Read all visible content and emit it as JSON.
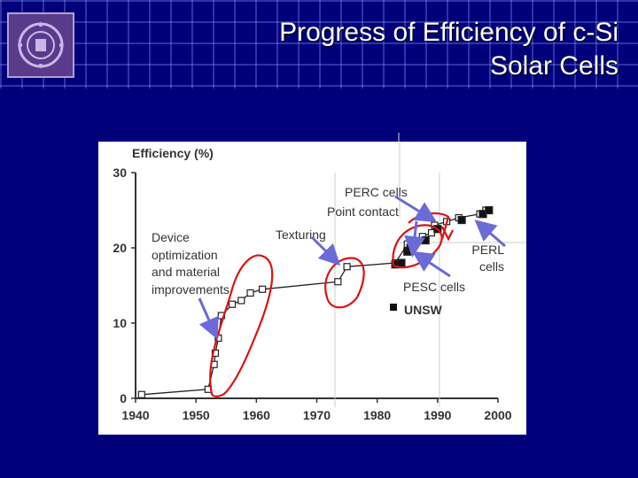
{
  "slide": {
    "title_line1": "Progress of Efficiency of c-Si",
    "title_line2": "Solar Cells"
  },
  "colors": {
    "background": "#00007a",
    "annotation_circle": "#dd1111",
    "arrow": "#6a6ad8"
  },
  "icons": {
    "logo": "institute-logo"
  },
  "chart_data": {
    "type": "scatter",
    "title": "Efficiency (%)",
    "xlabel": "",
    "ylabel": "",
    "xlim": [
      1940,
      2000
    ],
    "ylim": [
      0,
      30
    ],
    "x_ticks": [
      1940,
      1950,
      1960,
      1970,
      1980,
      1990,
      2000
    ],
    "y_ticks": [
      0,
      10,
      20,
      30
    ],
    "legend_position": "right",
    "series": [
      {
        "name": "",
        "marker": "open-square",
        "connected": true,
        "points": [
          [
            1941,
            0.5
          ],
          [
            1952,
            1.2
          ],
          [
            1953,
            4.5
          ],
          [
            1953.2,
            6
          ],
          [
            1953.7,
            8
          ],
          [
            1954.2,
            11
          ],
          [
            1956,
            12.5
          ],
          [
            1957.5,
            13
          ],
          [
            1959,
            14
          ],
          [
            1961,
            14.5
          ],
          [
            1973.5,
            15.5
          ],
          [
            1975,
            17.5
          ],
          [
            1983,
            18
          ],
          [
            1985,
            20.5
          ],
          [
            1986,
            21
          ],
          [
            1987.5,
            21.5
          ],
          [
            1989,
            22
          ],
          [
            1989.5,
            23
          ],
          [
            1991.5,
            23.5
          ],
          [
            1993.5,
            24
          ],
          [
            1997,
            24.5
          ],
          [
            1998,
            25
          ]
        ]
      },
      {
        "name": "UNSW",
        "marker": "filled-square",
        "connected": false,
        "points": [
          [
            1983,
            17.8
          ],
          [
            1984,
            18
          ],
          [
            1985,
            19.5
          ],
          [
            1985.5,
            20
          ],
          [
            1988,
            21
          ],
          [
            1990,
            22.5
          ],
          [
            1994,
            23.7
          ],
          [
            1997.5,
            24.5
          ],
          [
            1998.5,
            25
          ]
        ]
      }
    ],
    "annotations": [
      "PERC cells",
      "Point contact",
      "Texturing",
      "Device optimization",
      "and material",
      "improvements",
      "PERL",
      "cells",
      "PESC cells"
    ]
  },
  "labels": {
    "perc": "PERC cells",
    "point_contact": "Point contact",
    "texturing": "Texturing",
    "device_opt_1": "Device",
    "device_opt_2": "optimization",
    "device_opt_3": "and material",
    "device_opt_4": "improvements",
    "perl_1": "PERL",
    "perl_2": "cells",
    "pesc": "PESC cells"
  }
}
